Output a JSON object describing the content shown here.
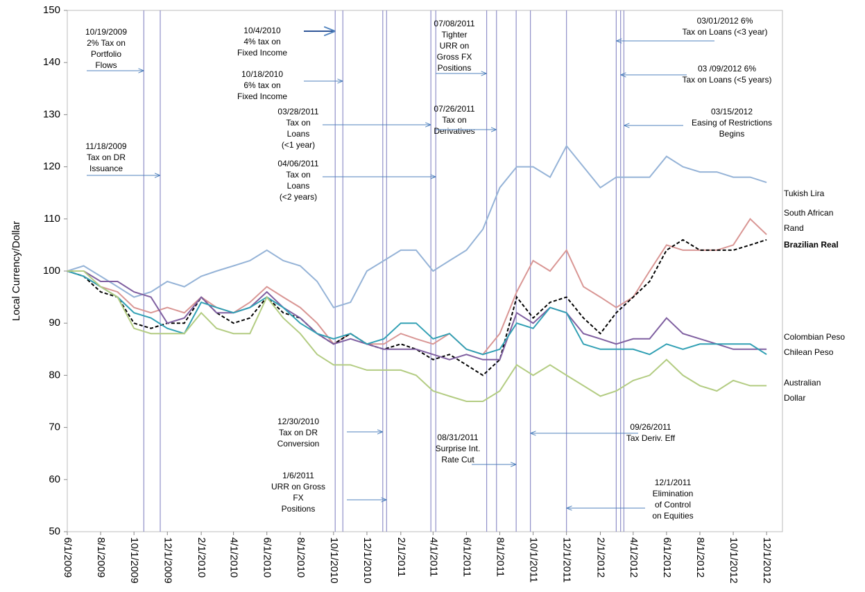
{
  "chart_data": {
    "type": "line",
    "y_label": "Local Currency/Dollar",
    "x": [
      "6/1/2009",
      "7/1/2009",
      "8/1/2009",
      "9/1/2009",
      "10/1/2009",
      "11/1/2009",
      "12/1/2009",
      "1/1/2010",
      "2/1/2010",
      "3/1/2010",
      "4/1/2010",
      "5/1/2010",
      "6/1/2010",
      "7/1/2010",
      "8/1/2010",
      "9/1/2010",
      "10/1/2010",
      "11/1/2010",
      "12/1/2010",
      "1/1/2011",
      "2/1/2011",
      "3/1/2011",
      "4/1/2011",
      "5/1/2011",
      "6/1/2011",
      "7/1/2011",
      "8/1/2011",
      "9/1/2011",
      "10/1/2011",
      "11/1/2011",
      "12/1/2011",
      "1/1/2012",
      "2/1/2012",
      "3/1/2012",
      "4/1/2012",
      "5/1/2012",
      "6/1/2012",
      "7/1/2012",
      "8/1/2012",
      "9/1/2012",
      "10/1/2012",
      "11/1/2012",
      "12/1/2012"
    ],
    "xlim": [
      "6/1/2009",
      "12/30/2012"
    ],
    "xticks": [
      "6/1/2009",
      "8/1/2009",
      "10/1/2009",
      "12/1/2009",
      "2/1/2010",
      "4/1/2010",
      "6/1/2010",
      "8/1/2010",
      "10/1/2010",
      "12/1/2010",
      "2/1/2011",
      "4/1/2011",
      "6/1/2011",
      "8/1/2011",
      "10/1/2011",
      "12/1/2011",
      "2/1/2012",
      "4/1/2012",
      "6/1/2012",
      "8/1/2012",
      "10/1/2012",
      "12/1/2012"
    ],
    "ylim": [
      50,
      150
    ],
    "yticks": [
      50,
      60,
      70,
      80,
      90,
      100,
      110,
      120,
      130,
      140,
      150
    ],
    "series": [
      {
        "name": "Tukish Lira",
        "color": "#95b3d7",
        "values": [
          100,
          101,
          99,
          97,
          95,
          96,
          98,
          97,
          99,
          100,
          101,
          102,
          104,
          102,
          101,
          98,
          93,
          94,
          100,
          102,
          104,
          104,
          100,
          102,
          104,
          108,
          116,
          120,
          120,
          118,
          124,
          120,
          116,
          118,
          118,
          118,
          122,
          120,
          119,
          119,
          118,
          118,
          117
        ]
      },
      {
        "name": "South African Rand",
        "color": "#d99694",
        "values": [
          100,
          99,
          97,
          96,
          93,
          92,
          93,
          92,
          95,
          93,
          92,
          94,
          97,
          95,
          93,
          90,
          86,
          88,
          86,
          86,
          88,
          87,
          86,
          88,
          85,
          84,
          88,
          96,
          102,
          100,
          104,
          97,
          95,
          93,
          95,
          100,
          105,
          104,
          104,
          104,
          105,
          110,
          107
        ]
      },
      {
        "name": "Brazilian Real",
        "color": "#000000",
        "dashed": true,
        "values": [
          100,
          99,
          96,
          95,
          90,
          89,
          90,
          90,
          95,
          92,
          90,
          91,
          95,
          92,
          91,
          88,
          86,
          88,
          86,
          85,
          86,
          85,
          83,
          84,
          82,
          80,
          83,
          95,
          91,
          94,
          95,
          91,
          88,
          92,
          95,
          98,
          104,
          106,
          104,
          104,
          104,
          105,
          106
        ]
      },
      {
        "name": "Colombian Peso",
        "color": "#7f5fa0",
        "values": [
          100,
          100,
          98,
          98,
          96,
          95,
          90,
          91,
          95,
          92,
          92,
          93,
          96,
          93,
          91,
          88,
          86,
          87,
          86,
          85,
          85,
          85,
          84,
          83,
          84,
          83,
          83,
          92,
          90,
          93,
          92,
          88,
          87,
          86,
          87,
          87,
          91,
          88,
          87,
          86,
          85,
          85,
          85
        ]
      },
      {
        "name": "Chilean Peso",
        "color": "#31a0b4",
        "values": [
          100,
          99,
          97,
          95,
          92,
          91,
          89,
          88,
          94,
          93,
          92,
          93,
          95,
          93,
          90,
          88,
          87,
          88,
          86,
          87,
          90,
          90,
          87,
          88,
          85,
          84,
          85,
          90,
          89,
          93,
          92,
          86,
          85,
          85,
          85,
          84,
          86,
          85,
          86,
          86,
          86,
          86,
          84
        ]
      },
      {
        "name": "Australian Dollar",
        "color": "#b3cc82",
        "values": [
          100,
          100,
          97,
          95,
          89,
          88,
          88,
          88,
          92,
          89,
          88,
          88,
          95,
          91,
          88,
          84,
          82,
          82,
          81,
          81,
          81,
          80,
          77,
          76,
          75,
          75,
          77,
          82,
          80,
          82,
          80,
          78,
          76,
          77,
          79,
          80,
          83,
          80,
          78,
          77,
          79,
          78,
          78
        ]
      }
    ],
    "events": [
      {
        "date": "10/19/2009",
        "label": [
          "10/19/2009",
          "2% Tax on",
          "Portfolio",
          "Flows"
        ]
      },
      {
        "date": "11/18/2009",
        "label": [
          "11/18/2009",
          "Tax on DR",
          "Issuance"
        ]
      },
      {
        "date": "10/4/2010",
        "label": [
          "10/4/2010",
          "4% tax on",
          "Fixed Income"
        ]
      },
      {
        "date": "10/18/2010",
        "label": [
          "10/18/2010",
          "6% tax on",
          "Fixed Income"
        ]
      },
      {
        "date": "3/28/2011",
        "label": [
          "03/28/2011",
          "Tax on",
          "Loans",
          "(<1 year)"
        ]
      },
      {
        "date": "4/6/2011",
        "label": [
          "04/06/2011",
          "Tax on",
          "Loans",
          "(<2 years)"
        ]
      },
      {
        "date": "12/30/2010",
        "label": [
          "12/30/2010",
          "Tax on DR",
          "Conversion"
        ]
      },
      {
        "date": "1/6/2011",
        "label": [
          "1/6/2011",
          "URR on Gross",
          "FX",
          "Positions"
        ]
      },
      {
        "date": "7/8/2011",
        "label": [
          "07/08/2011",
          "Tighter",
          "URR on",
          "Gross FX",
          "Positions"
        ]
      },
      {
        "date": "7/26/2011",
        "label": [
          "07/26/2011",
          "Tax on",
          "Derivatives"
        ]
      },
      {
        "date": "8/31/2011",
        "label": [
          "08/31/2011",
          "Surprise Int.",
          "Rate Cut"
        ]
      },
      {
        "date": "9/26/2011",
        "label": [
          "09/26/2011",
          "Tax Deriv. Eff"
        ]
      },
      {
        "date": "12/1/2011",
        "label": [
          "12/1/2011",
          "Elimination",
          "of Control",
          "on Equities"
        ]
      },
      {
        "date": "3/1/2012",
        "label": [
          "03/01/2012 6%",
          "Tax on Loans  (<3 year)"
        ]
      },
      {
        "date": "3/9/2012",
        "label": [
          "03 /09/2012 6%",
          "Tax on Loans (<5 years)"
        ]
      },
      {
        "date": "3/15/2012",
        "label": [
          "03/15/2012",
          "Easing of Restrictions",
          "Begins"
        ]
      }
    ]
  }
}
